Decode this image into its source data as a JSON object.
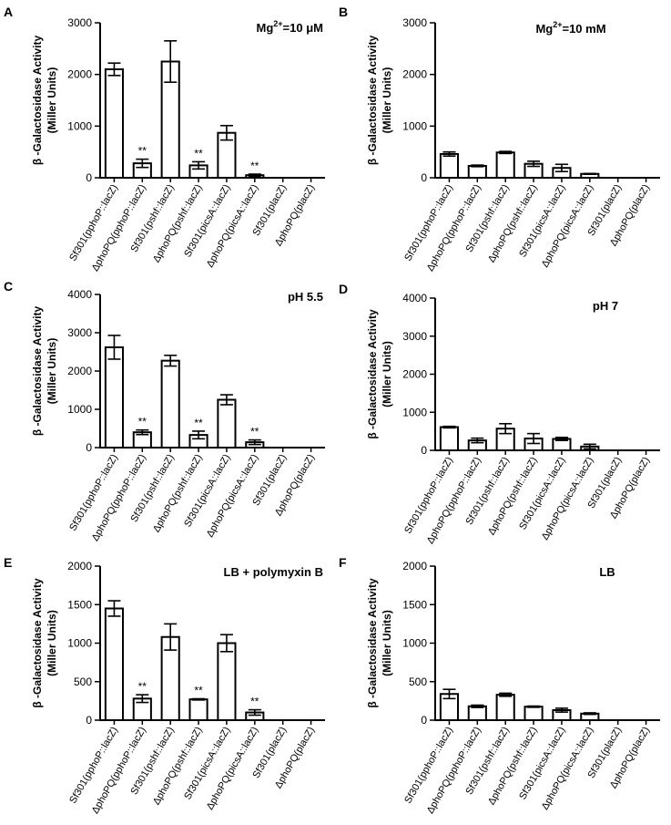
{
  "categories": [
    "Sf301(pphoP::lacZ)",
    "ΔphoPQ(pphoP::lacZ)",
    "Sf301(pshf::lacZ)",
    "ΔphoPQ(pshf::lacZ)",
    "Sf301(picsA::lacZ)",
    "ΔphoPQ(picsA::lacZ)",
    "Sf301(placZ)",
    "ΔphoPQ(placZ)"
  ],
  "chart_data": [
    {
      "panel": "A",
      "type": "bar",
      "title": "Mg2+=10 μM",
      "title_base": "Mg",
      "title_sup": "2+",
      "title_rest": "=10 μM",
      "ylabel": "β -Galactosidase Activity",
      "ylabel2": "(Miller Units)",
      "ylim": [
        0,
        3000
      ],
      "yticks": [
        "0",
        "1000",
        "2000",
        "3000"
      ],
      "values": [
        2100,
        280,
        2250,
        240,
        870,
        50,
        0,
        0
      ],
      "errors": [
        120,
        80,
        400,
        70,
        140,
        20,
        0,
        0
      ],
      "significance": [
        "",
        "**",
        "",
        "**",
        "",
        "**",
        "",
        ""
      ]
    },
    {
      "panel": "B",
      "type": "bar",
      "title": "Mg2+=10 mM",
      "title_base": "Mg",
      "title_sup": "2+",
      "title_rest": "=10 mM",
      "ylabel": "β -Galactosidase Activity",
      "ylabel2": "(Miller Units)",
      "ylim": [
        0,
        3000
      ],
      "yticks": [
        "0",
        "1000",
        "2000",
        "3000"
      ],
      "values": [
        460,
        230,
        490,
        270,
        190,
        75,
        0,
        0
      ],
      "errors": [
        40,
        15,
        20,
        50,
        70,
        8,
        0,
        0
      ],
      "significance": [
        "",
        "",
        "",
        "",
        "",
        "",
        "",
        ""
      ]
    },
    {
      "panel": "C",
      "type": "bar",
      "title": "pH 5.5",
      "ylabel": "β -Galactosidase Activity",
      "ylabel2": "(Miller Units)",
      "ylim": [
        0,
        4000
      ],
      "yticks": [
        "0",
        "1000",
        "2000",
        "3000",
        "4000"
      ],
      "values": [
        2620,
        400,
        2270,
        330,
        1250,
        140,
        0,
        0
      ],
      "errors": [
        310,
        60,
        140,
        100,
        130,
        60,
        0,
        0
      ],
      "significance": [
        "",
        "**",
        "",
        "**",
        "",
        "**",
        "",
        ""
      ]
    },
    {
      "panel": "D",
      "type": "bar",
      "title": "pH 7",
      "ylabel": "β -Galactosidase Activity",
      "ylabel2": "(Miller Units)",
      "ylim": [
        0,
        4000
      ],
      "yticks": [
        "0",
        "1000",
        "2000",
        "3000",
        "4000"
      ],
      "values": [
        610,
        260,
        570,
        310,
        300,
        100,
        0,
        0
      ],
      "errors": [
        20,
        60,
        130,
        130,
        40,
        60,
        0,
        0
      ],
      "significance": [
        "",
        "",
        "",
        "",
        "",
        "",
        "",
        ""
      ]
    },
    {
      "panel": "E",
      "type": "bar",
      "title": "LB + polymyxin B",
      "ylabel": "β -Galactosidase Activity",
      "ylabel2": "(Miller Units)",
      "ylim": [
        0,
        2000
      ],
      "yticks": [
        "0",
        "500",
        "1000",
        "1500",
        "2000"
      ],
      "values": [
        1450,
        280,
        1080,
        270,
        1000,
        100,
        0,
        0
      ],
      "errors": [
        100,
        50,
        170,
        8,
        110,
        35,
        0,
        0
      ],
      "significance": [
        "",
        "**",
        "",
        "**",
        "",
        "**",
        "",
        ""
      ]
    },
    {
      "panel": "F",
      "type": "bar",
      "title": "LB",
      "ylabel": "β -Galactosidase Activity",
      "ylabel2": "(Miller Units)",
      "ylim": [
        0,
        2000
      ],
      "yticks": [
        "0",
        "500",
        "1000",
        "1500",
        "2000"
      ],
      "values": [
        340,
        180,
        330,
        175,
        130,
        85,
        0,
        0
      ],
      "errors": [
        60,
        15,
        20,
        8,
        25,
        10,
        0,
        0
      ],
      "significance": [
        "",
        "",
        "",
        "",
        "",
        "",
        "",
        ""
      ]
    }
  ]
}
